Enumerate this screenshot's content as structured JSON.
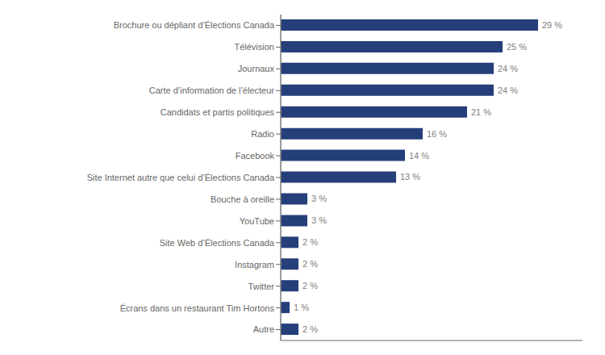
{
  "chart_data": {
    "type": "bar",
    "orientation": "horizontal",
    "categories": [
      "Autre",
      "Écrans dans un restaurant Tim Hortons",
      "Twitter",
      "Instagram",
      "Site Web d’Élections Canada",
      "YouTube",
      "Bouche à oreille",
      "Site Internet autre que celui d’Élections Canada",
      "Facebook",
      "Radio",
      "Candidats et partis politiques",
      "Carte d’information de l’électeur",
      "Journaux",
      "Télévision",
      "Brochure ou dépliant d’Élections Canada"
    ],
    "values": [
      2,
      1,
      2,
      2,
      2,
      3,
      3,
      13,
      14,
      16,
      21,
      24,
      24,
      25,
      29
    ],
    "value_labels": [
      "2 %",
      "1 %",
      "2 %",
      "2 %",
      "2 %",
      "3 %",
      "3 %",
      "13 %",
      "14 %",
      "16 %",
      "21 %",
      "24 %",
      "24 %",
      "25 %",
      "29 %"
    ],
    "color": "#253f7a",
    "xlim": [
      0,
      34
    ],
    "data_labels": true,
    "tick_labels": "y",
    "grid": false
  }
}
